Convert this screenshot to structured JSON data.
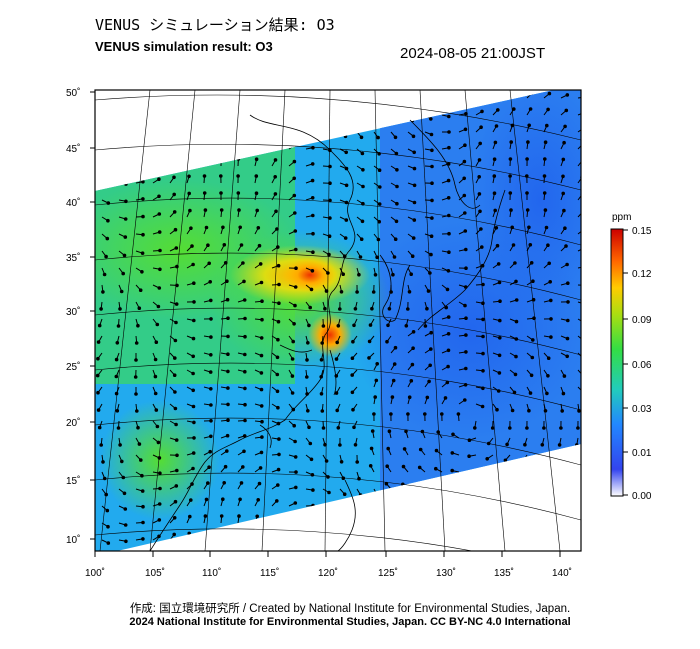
{
  "header": {
    "title_ja": "VENUS シミュレーション結果: O3",
    "title_en": "VENUS simulation result: O3",
    "timestamp": "2024-08-05 21:00JST"
  },
  "axes": {
    "lon_labels": [
      "100˚",
      "105˚",
      "110˚",
      "115˚",
      "120˚",
      "125˚",
      "130˚",
      "135˚",
      "140˚"
    ],
    "lat_labels": [
      "50˚",
      "45˚",
      "40˚",
      "35˚",
      "30˚",
      "25˚",
      "20˚",
      "15˚",
      "10˚"
    ]
  },
  "colorbar": {
    "unit": "ppm",
    "ticks": [
      "0.15",
      "0.12",
      "0.09",
      "0.06",
      "0.03",
      "0.01",
      "0.00"
    ],
    "colors": [
      "#ffffff",
      "#3355ee",
      "#2299ff",
      "#22dd88",
      "#66dd22",
      "#dddd11",
      "#ff9900",
      "#ee3311",
      "#bb0000"
    ]
  },
  "chart_data": {
    "type": "heatmap",
    "variable": "O3",
    "units": "ppm",
    "color_range": [
      0.0,
      0.15
    ],
    "lon_range": [
      100,
      140
    ],
    "lat_range": [
      10,
      50
    ],
    "high_regions": [
      {
        "lon": 121,
        "lat": 31,
        "value": 0.13
      },
      {
        "lon": 116,
        "lat": 35,
        "value": 0.11
      },
      {
        "lon": 110,
        "lat": 33,
        "value": 0.09
      }
    ]
  },
  "footer": {
    "credit_ja_en": "作成: 国立環境研究所 / Created by National Institute for Environmental Studies, Japan.",
    "copyright": "2024 National Institute for Environmental Studies, Japan. CC BY-NC 4.0 International"
  }
}
